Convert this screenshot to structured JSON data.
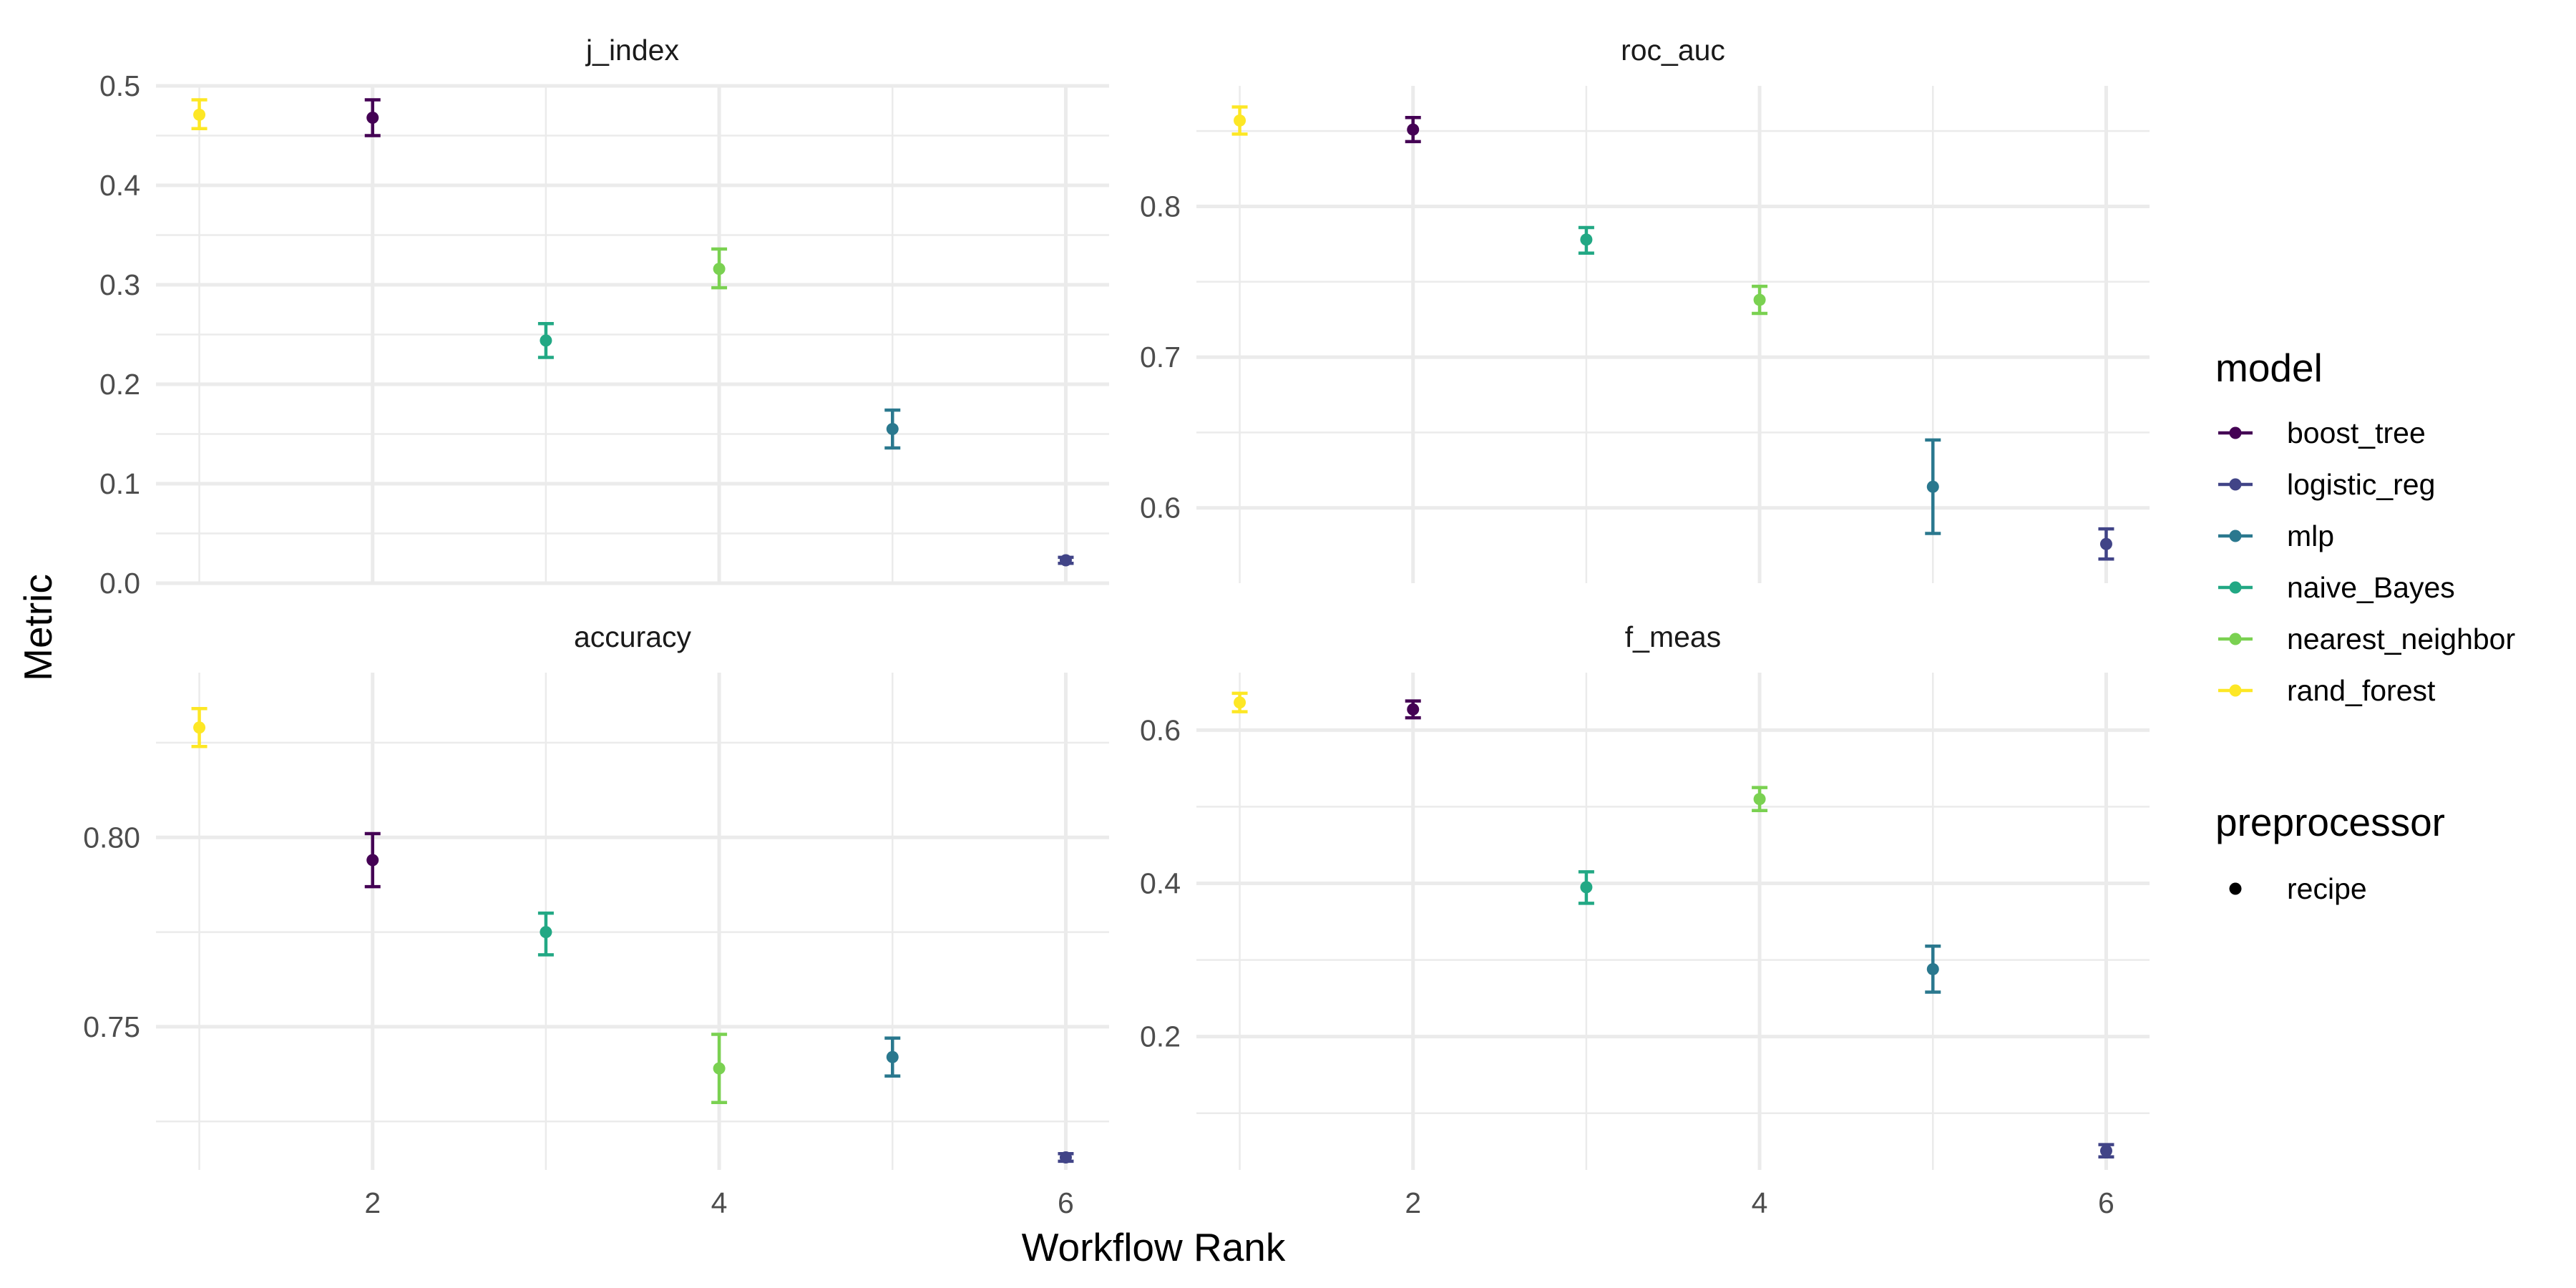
{
  "chart_data": {
    "type": "scatter",
    "chart_kind": "faceted point-range (mean ± standard error) by workflow rank",
    "x_label": "Workflow Rank",
    "y_label": "Metric",
    "x_range": [
      0.75,
      6.25
    ],
    "x_ticks": [
      2,
      4,
      6
    ],
    "grid": true,
    "legend_placement": "right",
    "legend": {
      "color_title": "model",
      "color_entries": [
        {
          "name": "boost_tree",
          "color": "#440154"
        },
        {
          "name": "logistic_reg",
          "color": "#414487"
        },
        {
          "name": "mlp",
          "color": "#2A788E"
        },
        {
          "name": "naive_Bayes",
          "color": "#22A884"
        },
        {
          "name": "nearest_neighbor",
          "color": "#7AD151"
        },
        {
          "name": "rand_forest",
          "color": "#FDE725"
        }
      ],
      "shape_title": "preprocessor",
      "shape_entries": [
        {
          "name": "recipe",
          "shape": "circle"
        }
      ]
    },
    "facets": [
      {
        "title": "j_index",
        "ylim": [
          0.0,
          0.5
        ],
        "y_ticks": [
          0.0,
          0.1,
          0.2,
          0.3,
          0.4,
          0.5
        ],
        "y_tick_labels": [
          "0.0",
          "0.1",
          "0.2",
          "0.3",
          "0.4",
          "0.5"
        ],
        "points": [
          {
            "rank": 1,
            "model": "rand_forest",
            "mean": 0.471,
            "lower": 0.457,
            "upper": 0.486
          },
          {
            "rank": 2,
            "model": "boost_tree",
            "mean": 0.468,
            "lower": 0.45,
            "upper": 0.486
          },
          {
            "rank": 3,
            "model": "naive_Bayes",
            "mean": 0.244,
            "lower": 0.227,
            "upper": 0.261
          },
          {
            "rank": 4,
            "model": "nearest_neighbor",
            "mean": 0.316,
            "lower": 0.297,
            "upper": 0.336
          },
          {
            "rank": 5,
            "model": "mlp",
            "mean": 0.155,
            "lower": 0.136,
            "upper": 0.174
          },
          {
            "rank": 6,
            "model": "logistic_reg",
            "mean": 0.023,
            "lower": 0.02,
            "upper": 0.026
          }
        ]
      },
      {
        "title": "roc_auc",
        "ylim": [
          0.55,
          0.88
        ],
        "y_ticks": [
          0.6,
          0.7,
          0.8
        ],
        "y_tick_labels": [
          "0.6",
          "0.7",
          "0.8"
        ],
        "points": [
          {
            "rank": 1,
            "model": "rand_forest",
            "mean": 0.857,
            "lower": 0.848,
            "upper": 0.866
          },
          {
            "rank": 2,
            "model": "boost_tree",
            "mean": 0.851,
            "lower": 0.843,
            "upper": 0.859
          },
          {
            "rank": 3,
            "model": "naive_Bayes",
            "mean": 0.778,
            "lower": 0.769,
            "upper": 0.786
          },
          {
            "rank": 4,
            "model": "nearest_neighbor",
            "mean": 0.738,
            "lower": 0.729,
            "upper": 0.747
          },
          {
            "rank": 5,
            "model": "mlp",
            "mean": 0.614,
            "lower": 0.583,
            "upper": 0.645
          },
          {
            "rank": 6,
            "model": "logistic_reg",
            "mean": 0.576,
            "lower": 0.566,
            "upper": 0.586
          }
        ]
      },
      {
        "title": "accuracy",
        "ylim": [
          0.7122,
          0.8435
        ],
        "y_ticks": [
          0.75,
          0.8
        ],
        "y_tick_labels": [
          "0.75",
          "0.80"
        ],
        "points": [
          {
            "rank": 1,
            "model": "rand_forest",
            "mean": 0.829,
            "lower": 0.824,
            "upper": 0.834
          },
          {
            "rank": 2,
            "model": "boost_tree",
            "mean": 0.794,
            "lower": 0.787,
            "upper": 0.801
          },
          {
            "rank": 3,
            "model": "naive_Bayes",
            "mean": 0.775,
            "lower": 0.769,
            "upper": 0.78
          },
          {
            "rank": 4,
            "model": "nearest_neighbor",
            "mean": 0.739,
            "lower": 0.73,
            "upper": 0.748
          },
          {
            "rank": 5,
            "model": "mlp",
            "mean": 0.742,
            "lower": 0.737,
            "upper": 0.747
          },
          {
            "rank": 6,
            "model": "logistic_reg",
            "mean": 0.7155,
            "lower": 0.7145,
            "upper": 0.7165
          }
        ]
      },
      {
        "title": "f_meas",
        "ylim": [
          0.026,
          0.675
        ],
        "y_ticks": [
          0.2,
          0.4,
          0.6
        ],
        "y_tick_labels": [
          "0.2",
          "0.4",
          "0.6"
        ],
        "points": [
          {
            "rank": 1,
            "model": "rand_forest",
            "mean": 0.636,
            "lower": 0.624,
            "upper": 0.648
          },
          {
            "rank": 2,
            "model": "boost_tree",
            "mean": 0.627,
            "lower": 0.616,
            "upper": 0.638
          },
          {
            "rank": 3,
            "model": "naive_Bayes",
            "mean": 0.395,
            "lower": 0.374,
            "upper": 0.415
          },
          {
            "rank": 4,
            "model": "nearest_neighbor",
            "mean": 0.51,
            "lower": 0.495,
            "upper": 0.525
          },
          {
            "rank": 5,
            "model": "mlp",
            "mean": 0.288,
            "lower": 0.258,
            "upper": 0.318
          },
          {
            "rank": 6,
            "model": "logistic_reg",
            "mean": 0.051,
            "lower": 0.043,
            "upper": 0.059
          }
        ]
      }
    ]
  }
}
